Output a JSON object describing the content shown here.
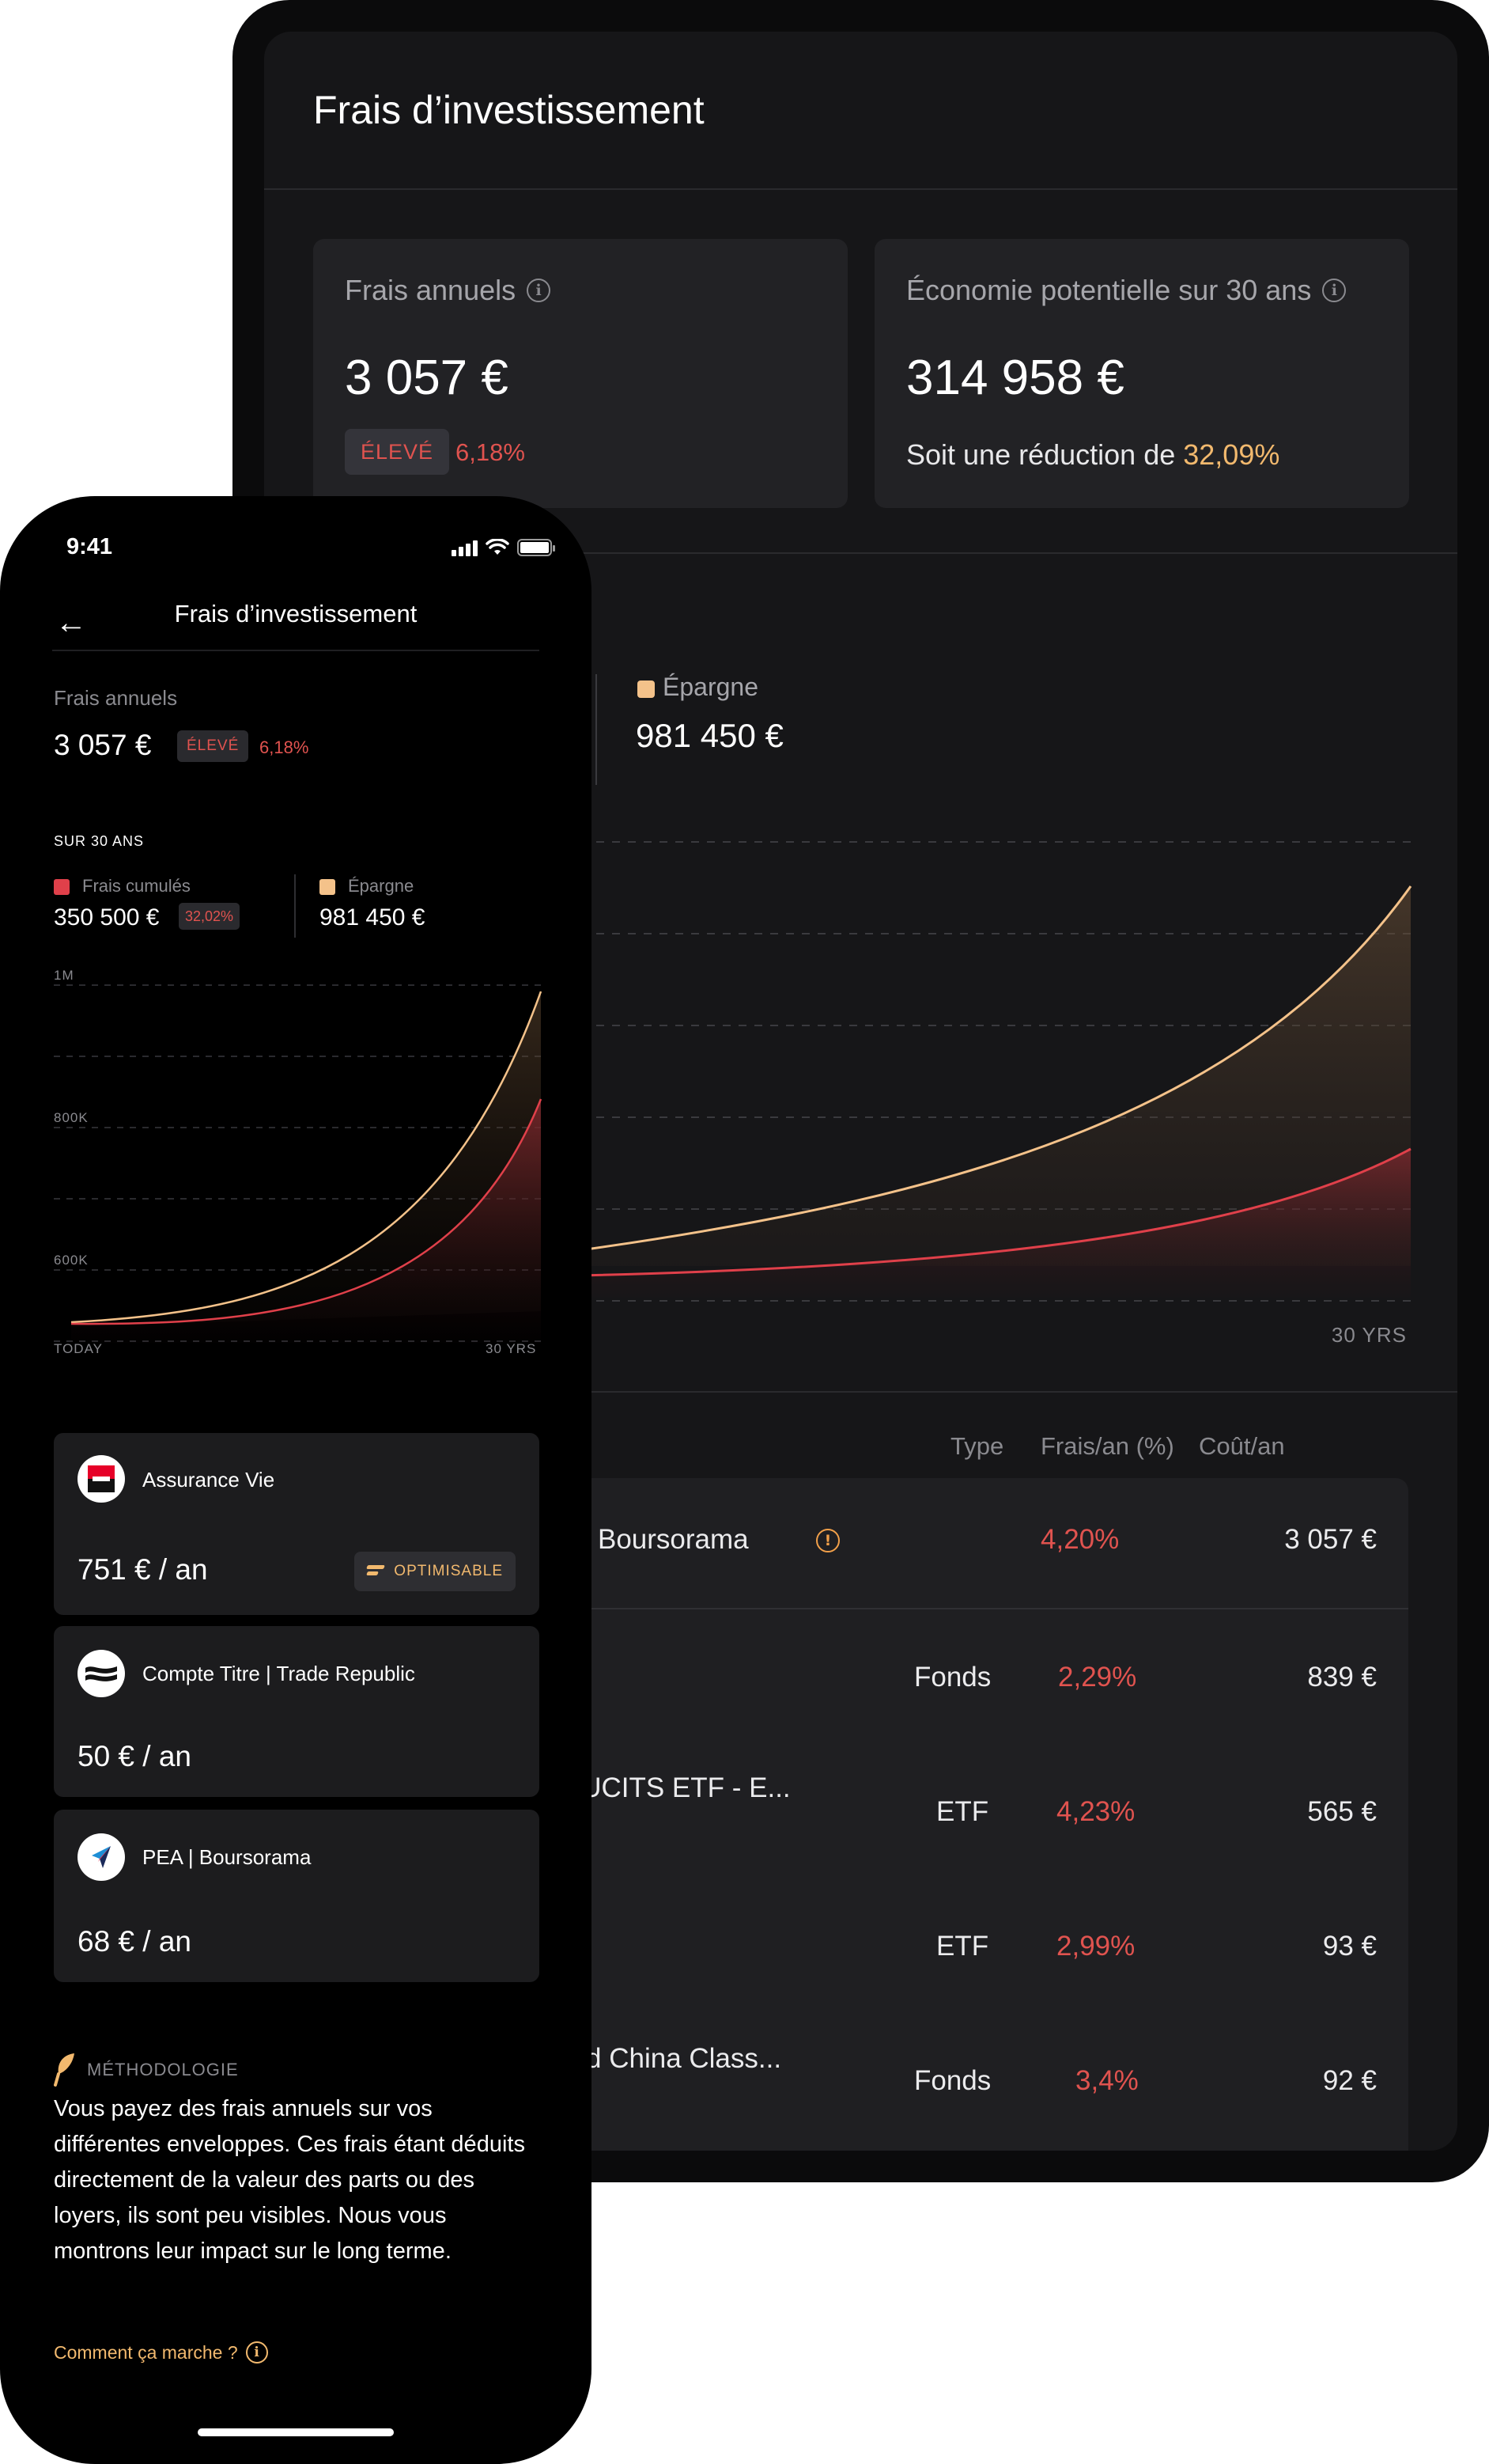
{
  "tablet": {
    "title": "Frais d’investissement",
    "card_fees": {
      "label": "Frais annuels",
      "value": "3 057 €",
      "badge": "ÉLEVÉ",
      "percent": "6,18%"
    },
    "card_savings": {
      "label": "Économie potentielle sur 30 ans",
      "value": "314 958 €",
      "sub_prefix": "Soit une réduction de ",
      "sub_highlight": "32,09%"
    },
    "legend": {
      "label": "Épargne",
      "value": "981 450 €"
    },
    "chart_x_end": "30 YRS",
    "table": {
      "headers": {
        "type": "Type",
        "rate": "Frais/an (%)",
        "cost": "Coût/an"
      },
      "group": {
        "name": "Boursorama",
        "rate": "4,20%",
        "cost": "3 057 €"
      },
      "rows": [
        {
          "name": "...",
          "type": "Fonds",
          "rate": "2,29%",
          "cost": "839 €"
        },
        {
          "name": "d UCITS ETF - E...",
          "type": "ETF",
          "rate": "4,23%",
          "cost": "565 €"
        },
        {
          "name": "...",
          "type": "ETF",
          "rate": "2,99%",
          "cost": "93 €"
        },
        {
          "name": "hild China Class...",
          "type": "Fonds",
          "rate": "3,4%",
          "cost": "92 €"
        }
      ]
    }
  },
  "phone": {
    "time": "9:41",
    "title": "Frais d’investissement",
    "fees": {
      "label": "Frais annuels",
      "value": "3 057 €",
      "badge": "ÉLEVÉ",
      "percent": "6,18%"
    },
    "period_label": "SUR 30 ANS",
    "legend": {
      "fees_label": "Frais cumulés",
      "fees_value": "350 500 €",
      "fees_percent": "32,02%",
      "savings_label": "Épargne",
      "savings_value": "981 450 €"
    },
    "chart": {
      "y_labels": [
        "1M",
        "800K",
        "600K"
      ],
      "x_start": "TODAY",
      "x_end": "30 YRS"
    },
    "accounts": [
      {
        "name": "Assurance Vie",
        "value": "751 € / an",
        "badge": "OPTIMISABLE"
      },
      {
        "name": "Compte Titre | Trade Republic",
        "value": "50 € / an"
      },
      {
        "name": "PEA | Boursorama",
        "value": "68 € / an"
      }
    ],
    "methodology": {
      "label": "MÉTHODOLOGIE",
      "text": "Vous payez des frais annuels sur vos différentes enveloppes. Ces frais étant déduits directement de la valeur des parts ou des loyers, ils sont peu visibles. Nous vous montrons leur impact sur le long terme.",
      "link": "Comment ça marche ?"
    }
  },
  "colors": {
    "accent_orange": "#f2b96e",
    "alert_red": "#e0534f",
    "savings_curve": "#f4c28a",
    "fees_curve": "#e0404a"
  },
  "icons": [
    "info-icon",
    "back-arrow-icon",
    "signal-icon",
    "wifi-icon",
    "battery-icon",
    "warning-icon",
    "optimize-icon",
    "methodology-leaf-icon"
  ]
}
